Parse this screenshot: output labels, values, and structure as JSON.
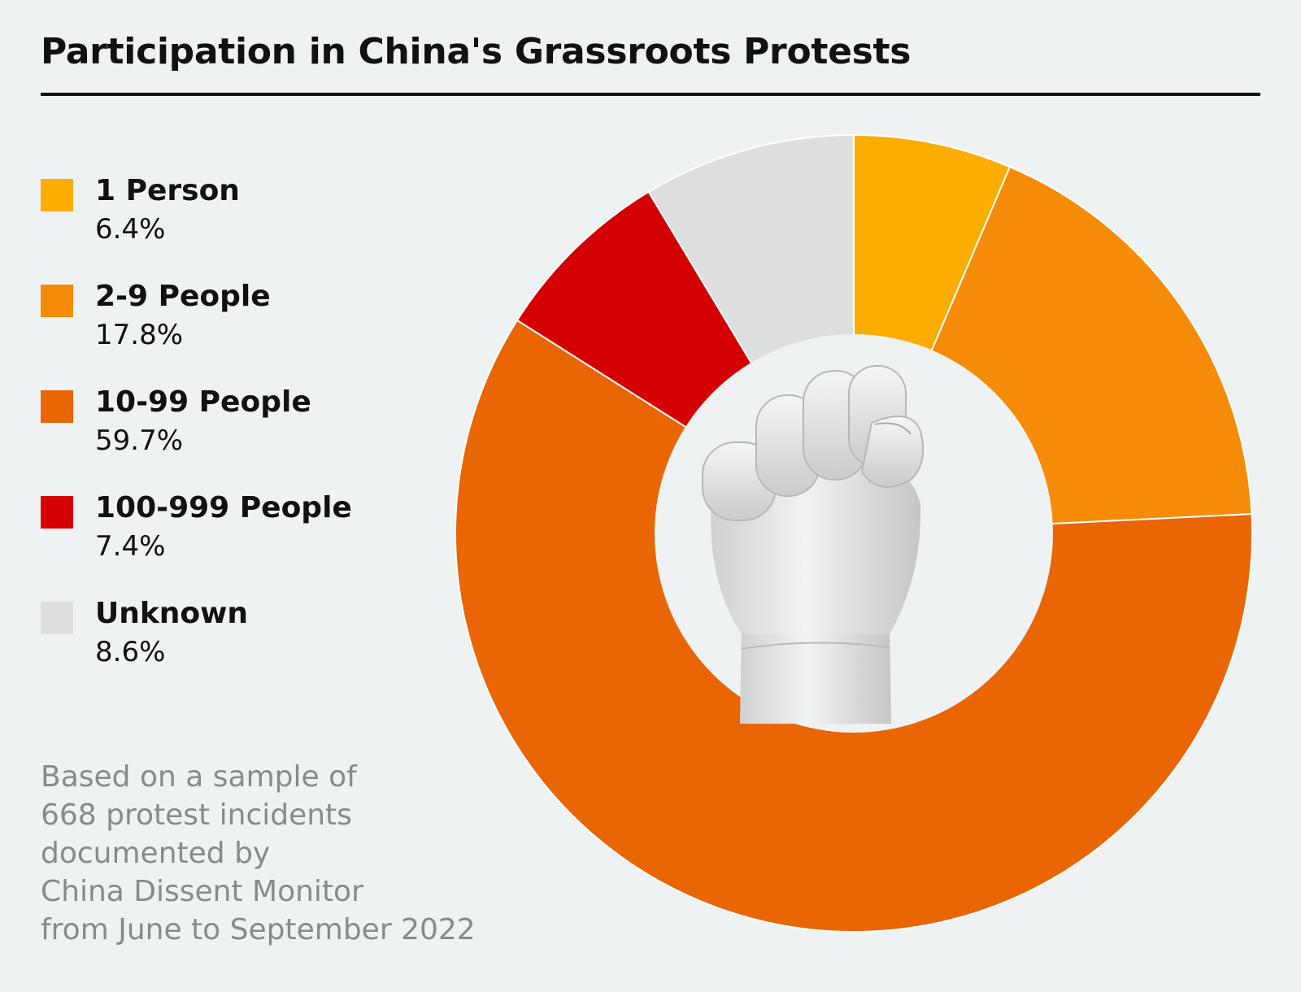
{
  "title": "Participation in China's Grassroots Protests",
  "note": "Based on a sample of\n668 protest incidents\ndocumented by\nChina Dissent Monitor\nfrom June to September 2022",
  "colors": {
    "background": "#eff2f2",
    "hole": "#eff2f2",
    "separator": "#ffffff"
  },
  "center_image": "raised-fist-icon",
  "legend": [
    {
      "label": "1 Person",
      "value_text": "6.4%",
      "color": "#fdac02"
    },
    {
      "label": "2-9 People",
      "value_text": "17.8%",
      "color": "#f68b07"
    },
    {
      "label": "10-99 People",
      "value_text": "59.7%",
      "color": "#ea6503"
    },
    {
      "label": "100-999 People",
      "value_text": "7.4%",
      "color": "#d40003"
    },
    {
      "label": "Unknown",
      "value_text": "8.6%",
      "color": "#dcdedf"
    }
  ],
  "chart_data": {
    "type": "pie",
    "variant": "donut",
    "categories": [
      "1 Person",
      "2-9 People",
      "10-99 People",
      "100-999 People",
      "Unknown"
    ],
    "values": [
      6.4,
      17.8,
      59.7,
      7.4,
      8.6
    ],
    "colors": [
      "#fdac02",
      "#f68b07",
      "#ea6503",
      "#d40003",
      "#dcdedf"
    ],
    "unit": "%",
    "start_angle": "12 o'clock",
    "direction": "clockwise",
    "legend_position": "left"
  }
}
